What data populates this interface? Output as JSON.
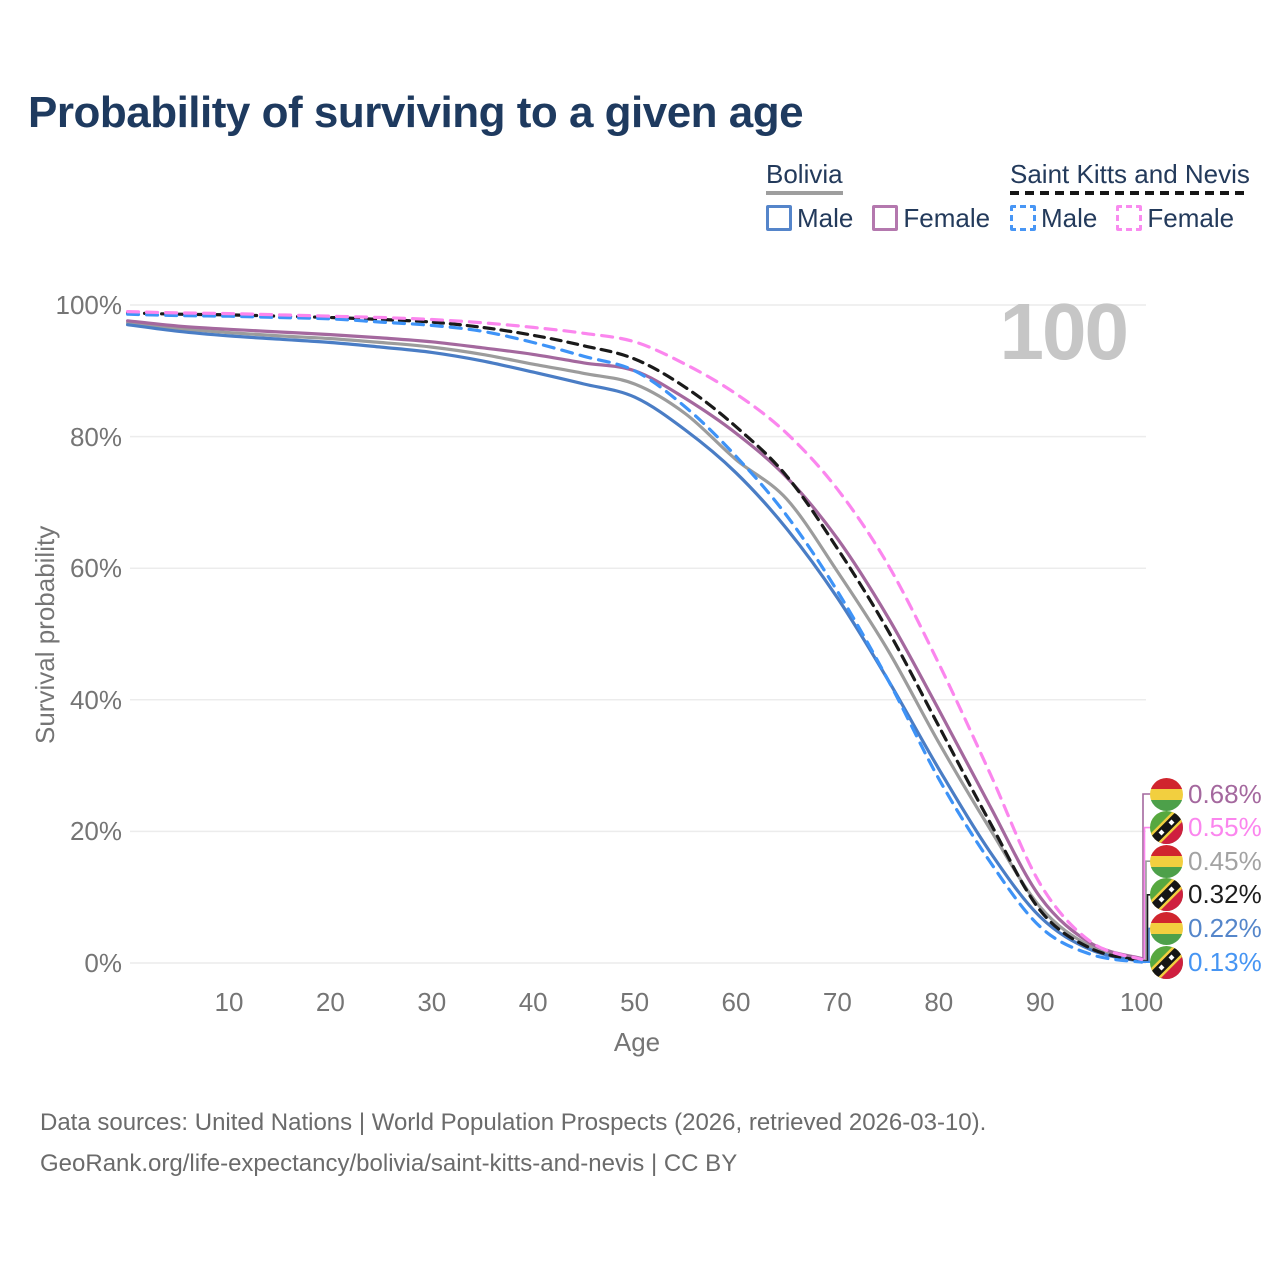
{
  "title": "Probability of surviving to a given age",
  "watermark": "100",
  "legend": {
    "groups": [
      {
        "name": "Bolivia",
        "line_style": "solid",
        "items": [
          {
            "label": "Male",
            "color": "#5585ca",
            "dashed": false
          },
          {
            "label": "Female",
            "color": "#b478ae",
            "dashed": false
          }
        ]
      },
      {
        "name": "Saint Kitts and Nevis",
        "line_style": "dashed",
        "items": [
          {
            "label": "Male",
            "color": "#4896f5",
            "dashed": true
          },
          {
            "label": "Female",
            "color": "#f98bef",
            "dashed": true
          }
        ]
      }
    ]
  },
  "chart_data": {
    "type": "line",
    "title": "Probability of surviving to a given age",
    "xlabel": "Age",
    "ylabel": "Survival probability",
    "xlim": [
      0,
      100
    ],
    "ylim": [
      0,
      100
    ],
    "grid": "horizontal",
    "legend_position": "top-right",
    "xticks": [
      10,
      20,
      30,
      40,
      50,
      60,
      70,
      80,
      90,
      100
    ],
    "yticks": [
      {
        "value": 0,
        "label": "0%"
      },
      {
        "value": 20,
        "label": "20%"
      },
      {
        "value": 40,
        "label": "40%"
      },
      {
        "value": 60,
        "label": "60%"
      },
      {
        "value": 80,
        "label": "80%"
      },
      {
        "value": 100,
        "label": "100%"
      }
    ],
    "x": [
      0,
      5,
      10,
      15,
      20,
      25,
      30,
      35,
      40,
      45,
      50,
      55,
      60,
      65,
      70,
      75,
      80,
      85,
      90,
      95,
      100
    ],
    "series": [
      {
        "id": "bolivia-average",
        "country": "Bolivia",
        "color": "#9c9c9c",
        "dashed": false,
        "values": [
          97.3,
          96.4,
          95.8,
          95.3,
          94.9,
          94.3,
          93.6,
          92.5,
          91.0,
          89.6,
          88.0,
          83.5,
          76.5,
          70.5,
          59.5,
          47.5,
          33.5,
          20.5,
          8.5,
          2.5,
          0.45
        ],
        "end_label": "0.45%"
      },
      {
        "id": "bolivia-female",
        "country": "Bolivia",
        "color": "#a4689e",
        "dashed": false,
        "values": [
          97.6,
          96.8,
          96.3,
          95.9,
          95.5,
          95.0,
          94.4,
          93.5,
          92.5,
          91.2,
          90.0,
          85.8,
          80.5,
          73.8,
          64.5,
          52.5,
          38.5,
          24.0,
          10.0,
          3.0,
          0.68
        ],
        "end_label": "0.68%"
      },
      {
        "id": "bolivia-male",
        "country": "Bolivia",
        "color": "#4a7dc5",
        "dashed": false,
        "values": [
          97.0,
          96.0,
          95.3,
          94.8,
          94.3,
          93.6,
          92.8,
          91.5,
          89.8,
          88.0,
          86.0,
          81.0,
          74.5,
          66.0,
          55.5,
          43.0,
          29.5,
          17.0,
          7.0,
          2.0,
          0.22
        ],
        "end_label": "0.22%"
      },
      {
        "id": "saint-kitts-and-nevis-average",
        "country": "Saint Kitts and Nevis",
        "color": "#1a1a1a",
        "dashed": true,
        "values": [
          98.8,
          98.6,
          98.5,
          98.3,
          98.1,
          97.8,
          97.4,
          96.6,
          95.4,
          93.8,
          91.8,
          87.5,
          81.5,
          74.0,
          63.0,
          50.5,
          36.0,
          21.5,
          8.0,
          2.2,
          0.32
        ],
        "end_label": "0.32%"
      },
      {
        "id": "saint-kitts-and-nevis-male",
        "country": "Saint Kitts and Nevis",
        "color": "#3e93f7",
        "dashed": true,
        "values": [
          98.6,
          98.4,
          98.3,
          98.1,
          97.9,
          97.4,
          96.9,
          96.0,
          94.3,
          92.2,
          90.0,
          84.5,
          77.0,
          68.0,
          56.5,
          43.0,
          28.0,
          15.5,
          5.5,
          1.3,
          0.13
        ],
        "end_label": "0.13%"
      },
      {
        "id": "saint-kitts-and-nevis-female",
        "country": "Saint Kitts and Nevis",
        "color": "#fb86ee",
        "dashed": true,
        "values": [
          99.0,
          98.8,
          98.7,
          98.5,
          98.3,
          98.1,
          97.8,
          97.3,
          96.6,
          95.7,
          94.4,
          91.0,
          86.5,
          80.5,
          72.0,
          60.5,
          45.5,
          29.0,
          12.0,
          3.2,
          0.55
        ],
        "end_label": "0.55%"
      }
    ]
  },
  "end_labels": [
    {
      "flag": "bolivia",
      "value": "0.68%",
      "color": "#a4689e",
      "series": "bolivia-female"
    },
    {
      "flag": "saint-kitts-and-nevis",
      "value": "0.55%",
      "color": "#fb86ee",
      "series": "saint-kitts-and-nevis-female"
    },
    {
      "flag": "bolivia",
      "value": "0.45%",
      "color": "#a3a3a3",
      "series": "bolivia-average"
    },
    {
      "flag": "saint-kitts-and-nevis",
      "value": "0.32%",
      "color": "#1d1d1d",
      "series": "saint-kitts-and-nevis-average"
    },
    {
      "flag": "bolivia",
      "value": "0.22%",
      "color": "#5586ca",
      "series": "bolivia-male"
    },
    {
      "flag": "saint-kitts-and-nevis",
      "value": "0.13%",
      "color": "#4695f3",
      "series": "saint-kitts-and-nevis-male"
    }
  ],
  "footer": {
    "line1": "Data sources: United Nations | World Population Prospects (2026, retrieved 2026-03-10).",
    "line2": "GeoRank.org/life-expectancy/bolivia/saint-kitts-and-nevis | CC BY"
  }
}
